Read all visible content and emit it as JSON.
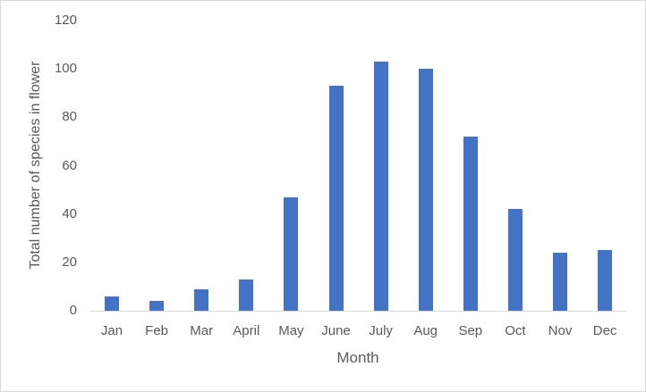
{
  "chart_data": {
    "type": "bar",
    "title": "",
    "xlabel": "Month",
    "ylabel": "Total number of species in flower",
    "categories": [
      "Jan",
      "Feb",
      "Mar",
      "April",
      "May",
      "June",
      "July",
      "Aug",
      "Sep",
      "Oct",
      "Nov",
      "Dec"
    ],
    "values": [
      6,
      4,
      9,
      13,
      47,
      93,
      103,
      100,
      72,
      42,
      24,
      25
    ],
    "ylim": [
      0,
      120
    ],
    "yticks": [
      0,
      20,
      40,
      60,
      80,
      100,
      120
    ],
    "grid": false,
    "legend": null,
    "bar_color": "#4472c4"
  }
}
